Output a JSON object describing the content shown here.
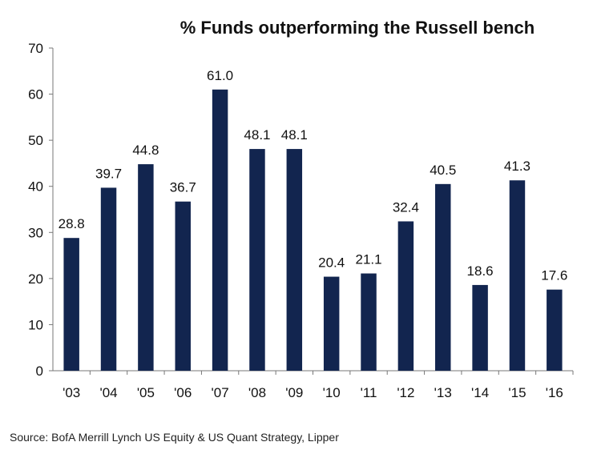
{
  "chart_data": {
    "type": "bar",
    "title": "% Funds outperforming the Russell bench",
    "source": "Source: BofA Merrill Lynch US Equity & US Quant Strategy, Lipper",
    "categories": [
      "'03",
      "'04",
      "'05",
      "'06",
      "'07",
      "'08",
      "'09",
      "'10",
      "'11",
      "'12",
      "'13",
      "'14",
      "'15",
      "'16"
    ],
    "values": [
      28.8,
      39.7,
      44.8,
      36.7,
      61.0,
      48.1,
      48.1,
      20.4,
      21.1,
      32.4,
      40.5,
      18.6,
      41.3,
      17.6
    ],
    "value_labels": [
      "28.8",
      "39.7",
      "44.8",
      "36.7",
      "61.0",
      "48.1",
      "48.1",
      "20.4",
      "21.1",
      "32.4",
      "40.5",
      "18.6",
      "41.3",
      "17.6"
    ],
    "ylim": [
      0,
      70
    ],
    "yticks": [
      0,
      10,
      20,
      30,
      40,
      50,
      60,
      70
    ],
    "bar_color": "#12254f",
    "grid": false,
    "legend": "none"
  }
}
